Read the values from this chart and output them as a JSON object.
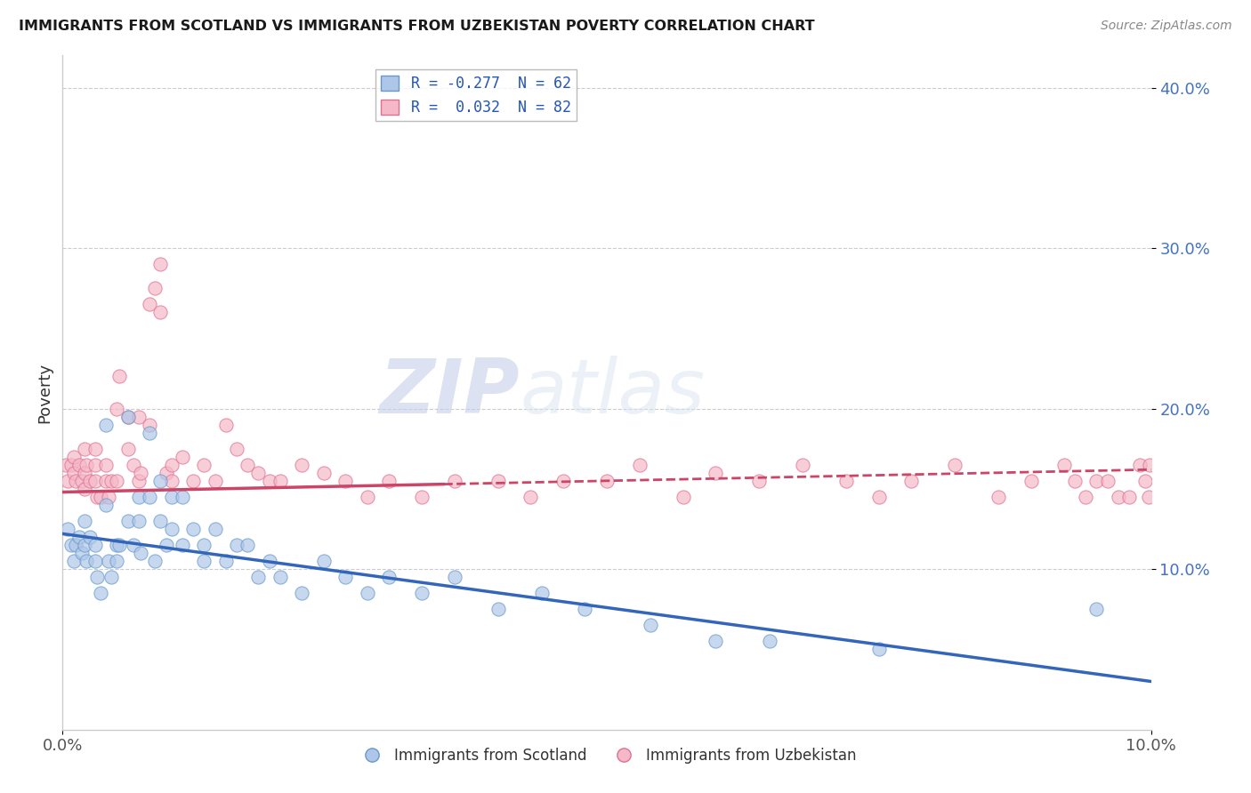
{
  "title": "IMMIGRANTS FROM SCOTLAND VS IMMIGRANTS FROM UZBEKISTAN POVERTY CORRELATION CHART",
  "source": "Source: ZipAtlas.com",
  "ylabel": "Poverty",
  "legend_scotland": "R = -0.277  N = 62",
  "legend_uzbekistan": "R =  0.032  N = 82",
  "legend_label_scotland": "Immigrants from Scotland",
  "legend_label_uzbekistan": "Immigrants from Uzbekistan",
  "scotland_face_color": "#aec6e8",
  "scotland_edge_color": "#6699cc",
  "uzbekistan_face_color": "#f4b8c8",
  "uzbekistan_edge_color": "#e07090",
  "scotland_line_color": "#3366bb",
  "uzbekistan_line_color": "#cc4466",
  "watermark_zip": "ZIP",
  "watermark_atlas": "atlas",
  "background_color": "#ffffff",
  "xlim": [
    0.0,
    0.1
  ],
  "ylim": [
    0.0,
    0.42
  ],
  "scotland_x": [
    0.0005,
    0.0008,
    0.001,
    0.0012,
    0.0015,
    0.0018,
    0.002,
    0.002,
    0.0022,
    0.0025,
    0.003,
    0.003,
    0.0032,
    0.0035,
    0.004,
    0.004,
    0.0042,
    0.0045,
    0.005,
    0.005,
    0.0052,
    0.006,
    0.006,
    0.0065,
    0.007,
    0.007,
    0.0072,
    0.008,
    0.008,
    0.0085,
    0.009,
    0.009,
    0.0095,
    0.01,
    0.01,
    0.011,
    0.011,
    0.012,
    0.013,
    0.013,
    0.014,
    0.015,
    0.016,
    0.017,
    0.018,
    0.019,
    0.02,
    0.022,
    0.024,
    0.026,
    0.028,
    0.03,
    0.033,
    0.036,
    0.04,
    0.044,
    0.048,
    0.054,
    0.06,
    0.065,
    0.075,
    0.095
  ],
  "scotland_y": [
    0.125,
    0.115,
    0.105,
    0.115,
    0.12,
    0.11,
    0.13,
    0.115,
    0.105,
    0.12,
    0.115,
    0.105,
    0.095,
    0.085,
    0.19,
    0.14,
    0.105,
    0.095,
    0.115,
    0.105,
    0.115,
    0.195,
    0.13,
    0.115,
    0.145,
    0.13,
    0.11,
    0.185,
    0.145,
    0.105,
    0.155,
    0.13,
    0.115,
    0.145,
    0.125,
    0.145,
    0.115,
    0.125,
    0.115,
    0.105,
    0.125,
    0.105,
    0.115,
    0.115,
    0.095,
    0.105,
    0.095,
    0.085,
    0.105,
    0.095,
    0.085,
    0.095,
    0.085,
    0.095,
    0.075,
    0.085,
    0.075,
    0.065,
    0.055,
    0.055,
    0.05,
    0.075
  ],
  "uzbekistan_x": [
    0.0003,
    0.0005,
    0.0008,
    0.001,
    0.001,
    0.0012,
    0.0015,
    0.0018,
    0.002,
    0.002,
    0.002,
    0.0022,
    0.0025,
    0.003,
    0.003,
    0.003,
    0.0032,
    0.0035,
    0.004,
    0.004,
    0.0042,
    0.0045,
    0.005,
    0.005,
    0.0052,
    0.006,
    0.006,
    0.0065,
    0.007,
    0.007,
    0.0072,
    0.008,
    0.008,
    0.0085,
    0.009,
    0.009,
    0.0095,
    0.01,
    0.01,
    0.011,
    0.012,
    0.013,
    0.014,
    0.015,
    0.016,
    0.017,
    0.018,
    0.019,
    0.02,
    0.022,
    0.024,
    0.026,
    0.028,
    0.03,
    0.033,
    0.036,
    0.04,
    0.043,
    0.046,
    0.05,
    0.053,
    0.057,
    0.06,
    0.064,
    0.068,
    0.072,
    0.075,
    0.078,
    0.082,
    0.086,
    0.089,
    0.092,
    0.093,
    0.094,
    0.095,
    0.096,
    0.097,
    0.098,
    0.099,
    0.0995,
    0.0998,
    0.0999
  ],
  "uzbekistan_y": [
    0.165,
    0.155,
    0.165,
    0.16,
    0.17,
    0.155,
    0.165,
    0.155,
    0.175,
    0.16,
    0.15,
    0.165,
    0.155,
    0.175,
    0.165,
    0.155,
    0.145,
    0.145,
    0.165,
    0.155,
    0.145,
    0.155,
    0.155,
    0.2,
    0.22,
    0.195,
    0.175,
    0.165,
    0.155,
    0.195,
    0.16,
    0.19,
    0.265,
    0.275,
    0.29,
    0.26,
    0.16,
    0.155,
    0.165,
    0.17,
    0.155,
    0.165,
    0.155,
    0.19,
    0.175,
    0.165,
    0.16,
    0.155,
    0.155,
    0.165,
    0.16,
    0.155,
    0.145,
    0.155,
    0.145,
    0.155,
    0.155,
    0.145,
    0.155,
    0.155,
    0.165,
    0.145,
    0.16,
    0.155,
    0.165,
    0.155,
    0.145,
    0.155,
    0.165,
    0.145,
    0.155,
    0.165,
    0.155,
    0.145,
    0.155,
    0.155,
    0.145,
    0.145,
    0.165,
    0.155,
    0.145,
    0.165
  ]
}
